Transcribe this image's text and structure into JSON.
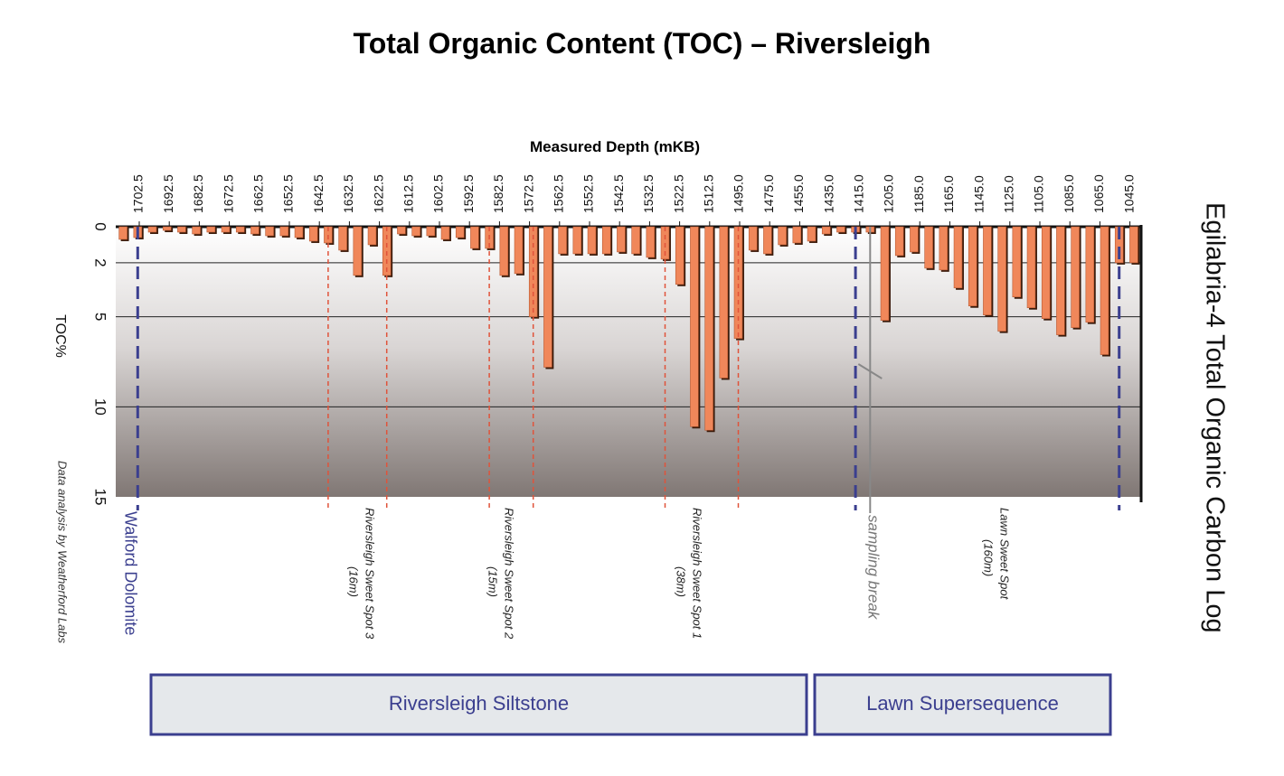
{
  "title": "Total Organic Content (TOC) – Riversleigh",
  "side_title": "Egilabria-4 Total Organic Carbon Log",
  "credit": "Data analysis by Weatherford Labs",
  "colors": {
    "bar": "#f0875a",
    "bar_edge": "#3a1a0a",
    "formation_line": "#3b3f8f",
    "sweet_spot_line": "#e0533a",
    "sampling_line": "#888888",
    "box_fill": "#e5e8eb",
    "box_stroke": "#3b3f8f",
    "box_text": "#3b3f8f"
  },
  "chart_data": {
    "type": "bar",
    "title": "Total Organic Content (TOC) – Riversleigh",
    "xlabel": "Measured Depth (mKB)",
    "ylabel": "TOC%",
    "ylim": [
      0,
      15
    ],
    "y_ticks": [
      0,
      2,
      5,
      10,
      15
    ],
    "y_inverted": true,
    "grid": true,
    "x_tick_labels": [
      "1702.5",
      "1692.5",
      "1682.5",
      "1672.5",
      "1662.5",
      "1652.5",
      "1642.5",
      "1632.5",
      "1622.5",
      "1612.5",
      "1602.5",
      "1592.5",
      "1582.5",
      "1572.5",
      "1562.5",
      "1552.5",
      "1542.5",
      "1532.5",
      "1522.5",
      "1512.5",
      "1495.0",
      "1475.0",
      "1455.0",
      "1435.0",
      "1415.0",
      "1205.0",
      "1185.0",
      "1165.0",
      "1145.0",
      "1125.0",
      "1105.0",
      "1085.0",
      "1065.0",
      "1045.0"
    ],
    "values": [
      0.7,
      0.6,
      0.3,
      0.2,
      0.3,
      0.4,
      0.3,
      0.3,
      0.3,
      0.4,
      0.5,
      0.5,
      0.6,
      0.8,
      0.9,
      1.3,
      2.7,
      1.0,
      2.7,
      0.4,
      0.5,
      0.5,
      0.7,
      0.6,
      1.2,
      1.2,
      2.7,
      2.6,
      5.0,
      7.8,
      1.5,
      1.5,
      1.5,
      1.5,
      1.4,
      1.5,
      1.7,
      1.8,
      3.2,
      11.1,
      11.3,
      8.4,
      6.2,
      1.3,
      1.5,
      1.0,
      0.9,
      0.8,
      0.4,
      0.3,
      0.3,
      0.3,
      5.2,
      1.6,
      1.4,
      2.3,
      2.4,
      3.4,
      4.4,
      4.9,
      5.8,
      3.9,
      4.5,
      5.1,
      6.0,
      5.6,
      5.3,
      7.1,
      2.0,
      2.0
    ],
    "formations": [
      {
        "label": "Walford Dolomite",
        "line_after_bar": 1.5
      },
      {
        "label": "",
        "line_after_bar": 50.5
      },
      {
        "label": "",
        "line_after_bar": 68.5
      }
    ],
    "sweet_spots": [
      {
        "label": "Riversleigh Sweet Spot 3",
        "thickness": "(16m)",
        "from_bar": 14.5,
        "to_bar": 18.5
      },
      {
        "label": "Riversleigh Sweet Spot 2",
        "thickness": "(15m)",
        "from_bar": 25.5,
        "to_bar": 28.5
      },
      {
        "label": "Riversleigh Sweet Spot 1",
        "thickness": "(38m)",
        "from_bar": 37.5,
        "to_bar": 42.5
      }
    ],
    "sampling_break": {
      "label": "sampling break",
      "after_bar": 51.5
    },
    "lawn_sweet_spot": {
      "label": "Lawn Sweet Spot",
      "thickness": "(160m)"
    },
    "units": [
      {
        "label": "Riversleigh Siltstone"
      },
      {
        "label": "Lawn Supersequence"
      }
    ]
  }
}
